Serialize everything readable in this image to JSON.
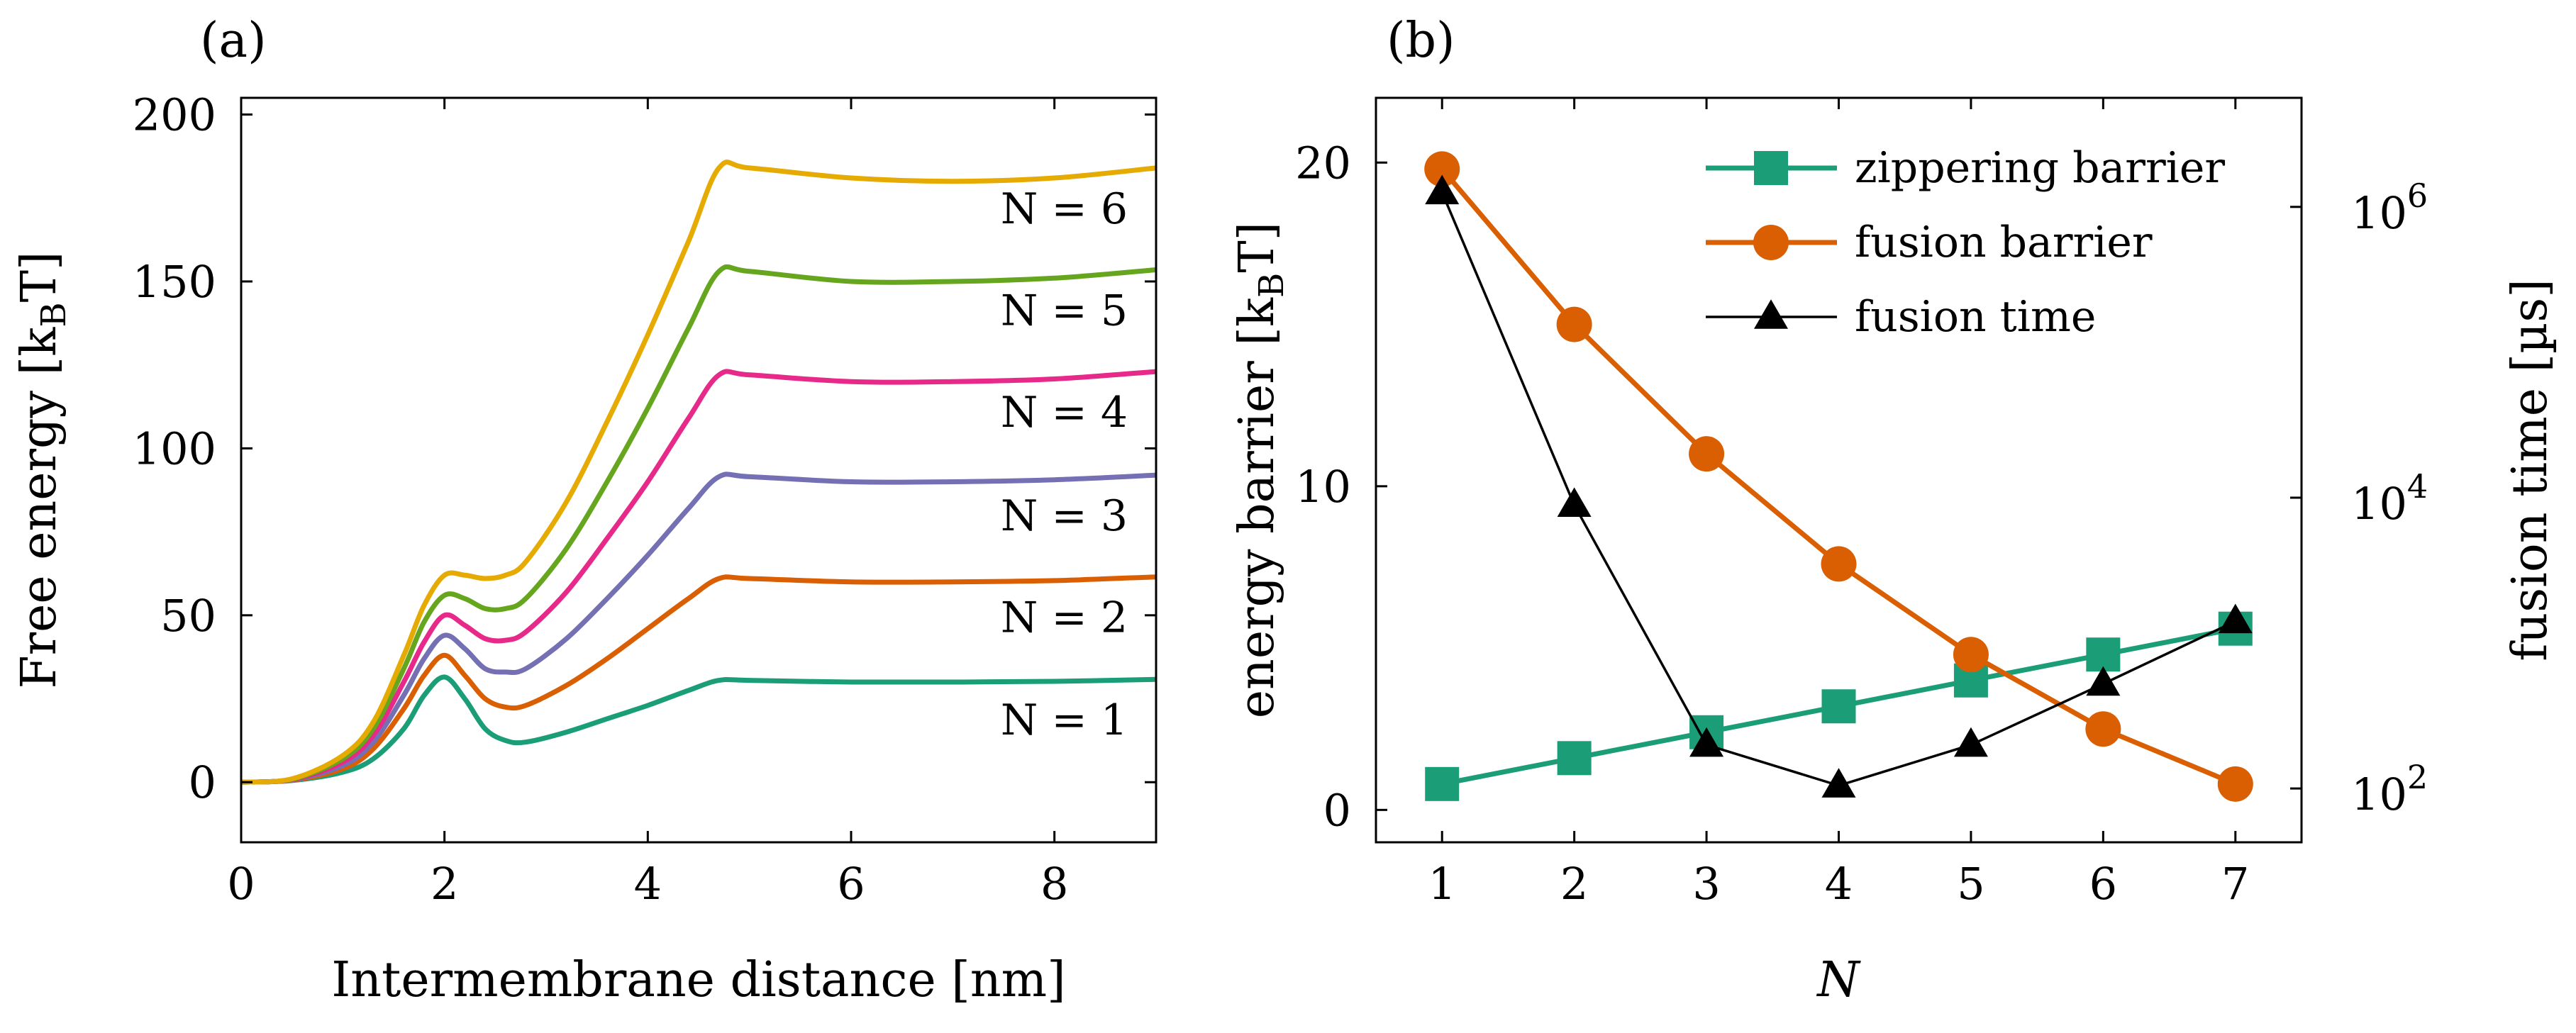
{
  "colors": {
    "green": "#1b9e77",
    "orange": "#d95f02",
    "purple": "#7570b3",
    "pink": "#e7298a",
    "lime": "#66a61e",
    "gold": "#e6ab02",
    "black": "#000000"
  },
  "chart_data": [
    {
      "panel_label": "(a)",
      "type": "line",
      "xlabel": "Intermembrane distance [nm]",
      "ylabel": "Free energy [k",
      "ylabel_sub": "B",
      "ylabel_tail": "T]",
      "xlim": [
        0,
        9
      ],
      "ylim": [
        -18,
        205
      ],
      "xticks": [
        0,
        2,
        4,
        6,
        8
      ],
      "yticks": [
        0,
        50,
        100,
        150,
        200
      ],
      "xtick_labels": [
        "0",
        "2",
        "4",
        "6",
        "8"
      ],
      "ytick_labels": [
        "0",
        "50",
        "100",
        "150",
        "200"
      ],
      "series": [
        {
          "name": "N = 1",
          "color": "green",
          "label": "N = 1",
          "values": [
            [
              0,
              0
            ],
            [
              0.5,
              0.5
            ],
            [
              1,
              3
            ],
            [
              1.3,
              7
            ],
            [
              1.6,
              16
            ],
            [
              1.8,
              26
            ],
            [
              2.0,
              31.5
            ],
            [
              2.2,
              25
            ],
            [
              2.4,
              16
            ],
            [
              2.6,
              12.5
            ],
            [
              2.8,
              12
            ],
            [
              3.2,
              15
            ],
            [
              3.6,
              19
            ],
            [
              4.0,
              23
            ],
            [
              4.4,
              27.5
            ],
            [
              4.7,
              30.5
            ],
            [
              5.0,
              30.5
            ],
            [
              6,
              30
            ],
            [
              7,
              30
            ],
            [
              8,
              30.2
            ],
            [
              9,
              30.8
            ]
          ]
        },
        {
          "name": "N = 2",
          "color": "orange",
          "label": "N = 2",
          "values": [
            [
              0,
              0
            ],
            [
              0.5,
              0.6
            ],
            [
              1,
              4
            ],
            [
              1.3,
              10
            ],
            [
              1.6,
              22
            ],
            [
              1.8,
              32
            ],
            [
              2.0,
              38
            ],
            [
              2.2,
              32
            ],
            [
              2.4,
              25
            ],
            [
              2.6,
              22.5
            ],
            [
              2.8,
              23
            ],
            [
              3.2,
              29
            ],
            [
              3.6,
              37
            ],
            [
              4.0,
              46
            ],
            [
              4.4,
              55
            ],
            [
              4.7,
              61
            ],
            [
              5.0,
              61
            ],
            [
              6,
              60
            ],
            [
              7,
              60
            ],
            [
              8,
              60.4
            ],
            [
              9,
              61.5
            ]
          ]
        },
        {
          "name": "N = 3",
          "color": "purple",
          "label": "N = 3",
          "values": [
            [
              0,
              0
            ],
            [
              0.5,
              0.7
            ],
            [
              1,
              5
            ],
            [
              1.3,
              12
            ],
            [
              1.6,
              26
            ],
            [
              1.8,
              37
            ],
            [
              2.0,
              44
            ],
            [
              2.2,
              40
            ],
            [
              2.4,
              34
            ],
            [
              2.6,
              33
            ],
            [
              2.8,
              34
            ],
            [
              3.2,
              43
            ],
            [
              3.6,
              55
            ],
            [
              4.0,
              68
            ],
            [
              4.4,
              82
            ],
            [
              4.7,
              91.5
            ],
            [
              5.0,
              91.5
            ],
            [
              6,
              90
            ],
            [
              7,
              90
            ],
            [
              8,
              90.6
            ],
            [
              9,
              92
            ]
          ]
        },
        {
          "name": "N = 4",
          "color": "pink",
          "label": "N = 4",
          "values": [
            [
              0,
              0
            ],
            [
              0.5,
              0.8
            ],
            [
              1,
              6
            ],
            [
              1.3,
              14
            ],
            [
              1.6,
              30
            ],
            [
              1.8,
              42
            ],
            [
              2.0,
              50
            ],
            [
              2.2,
              47
            ],
            [
              2.4,
              43
            ],
            [
              2.6,
              42.5
            ],
            [
              2.8,
              45
            ],
            [
              3.2,
              57
            ],
            [
              3.6,
              73
            ],
            [
              4.0,
              90
            ],
            [
              4.4,
              109
            ],
            [
              4.7,
              122
            ],
            [
              5.0,
              122
            ],
            [
              6,
              120
            ],
            [
              7,
              120
            ],
            [
              8,
              120.8
            ],
            [
              9,
              123
            ]
          ]
        },
        {
          "name": "N = 5",
          "color": "lime",
          "label": "N = 5",
          "values": [
            [
              0,
              0
            ],
            [
              0.5,
              0.9
            ],
            [
              1,
              7
            ],
            [
              1.3,
              16
            ],
            [
              1.6,
              34
            ],
            [
              1.8,
              48
            ],
            [
              2.0,
              56
            ],
            [
              2.2,
              55
            ],
            [
              2.4,
              52
            ],
            [
              2.6,
              52
            ],
            [
              2.8,
              55
            ],
            [
              3.2,
              70
            ],
            [
              3.6,
              90
            ],
            [
              4.0,
              112
            ],
            [
              4.4,
              136
            ],
            [
              4.7,
              153
            ],
            [
              5.0,
              153
            ],
            [
              6,
              150
            ],
            [
              7,
              150
            ],
            [
              8,
              151
            ],
            [
              9,
              153.5
            ]
          ]
        },
        {
          "name": "N = 6",
          "color": "gold",
          "label": "N = 6",
          "values": [
            [
              0,
              0
            ],
            [
              0.5,
              1
            ],
            [
              1,
              8
            ],
            [
              1.3,
              18
            ],
            [
              1.6,
              38
            ],
            [
              1.8,
              53
            ],
            [
              2.0,
              62
            ],
            [
              2.2,
              62
            ],
            [
              2.4,
              61
            ],
            [
              2.6,
              62
            ],
            [
              2.8,
              66
            ],
            [
              3.2,
              84
            ],
            [
              3.6,
              108
            ],
            [
              4.0,
              134
            ],
            [
              4.4,
              162
            ],
            [
              4.7,
              184
            ],
            [
              5.0,
              184
            ],
            [
              6,
              181
            ],
            [
              7,
              180
            ],
            [
              8,
              181
            ],
            [
              9,
              184
            ]
          ]
        }
      ]
    },
    {
      "panel_label": "(b)",
      "type": "line",
      "xlabel": "N",
      "ylabel": "energy barrier [k",
      "ylabel_sub": "B",
      "ylabel_tail": "T]",
      "y2label": "fusion time [µs]",
      "categories": [
        1,
        2,
        3,
        4,
        5,
        6,
        7
      ],
      "xtick_labels": [
        "1",
        "2",
        "3",
        "4",
        "5",
        "6",
        "7"
      ],
      "xlim": [
        0.5,
        7.5
      ],
      "ylim": [
        -1,
        22
      ],
      "yticks": [
        0,
        10,
        20
      ],
      "ytick_labels": [
        "0",
        "10",
        "20"
      ],
      "y2_scale": "log",
      "y2_log10_range": [
        1.63,
        6.75
      ],
      "y2ticks_log10": [
        2,
        4,
        6
      ],
      "y2tick_base": "10",
      "y2tick_exponents": [
        "2",
        "4",
        "6"
      ],
      "series": [
        {
          "name": "zippering barrier",
          "color": "green",
          "marker": "square",
          "axis": "left",
          "values": [
            0.8,
            1.6,
            2.4,
            3.2,
            4.0,
            4.8,
            5.6
          ]
        },
        {
          "name": "fusion barrier",
          "color": "orange",
          "marker": "circle",
          "axis": "left",
          "values": [
            19.8,
            15.0,
            11.0,
            7.6,
            4.8,
            2.5,
            0.8
          ]
        },
        {
          "name": "fusion time",
          "color": "black",
          "marker": "triangle",
          "axis": "right",
          "log10_values": [
            6.1,
            3.95,
            2.3,
            2.02,
            2.3,
            2.72,
            3.15
          ]
        }
      ],
      "legend_position": "top-right"
    }
  ]
}
